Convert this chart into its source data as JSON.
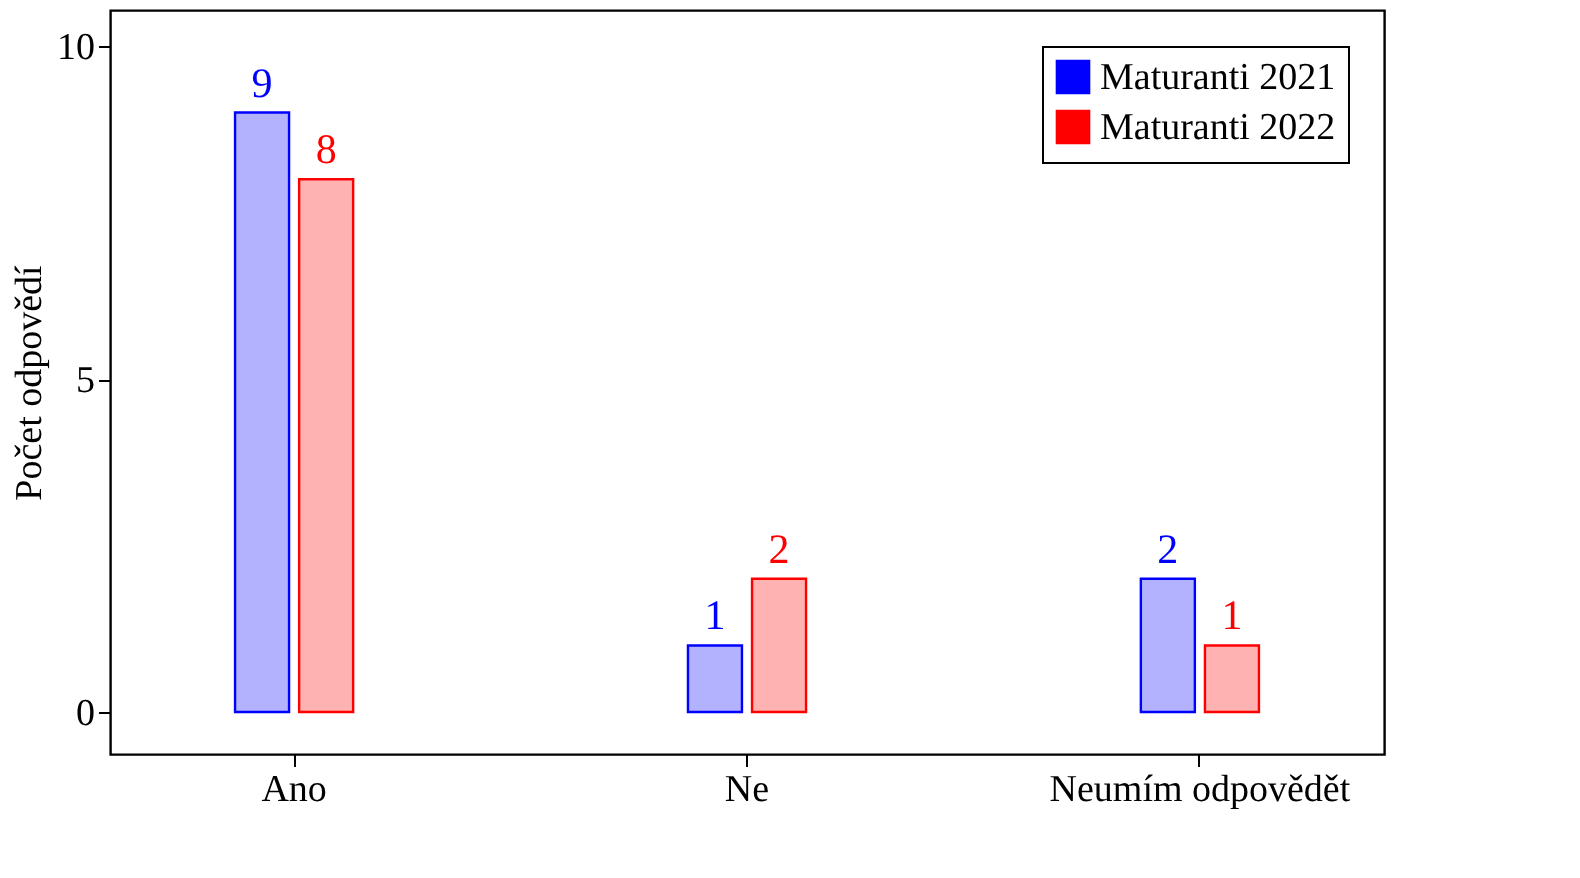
{
  "chart_data": {
    "type": "bar",
    "ylabel": "Počet odpovědí",
    "categories": [
      "Ano",
      "Ne",
      "Neumím odpovědět"
    ],
    "series": [
      {
        "name": "Maturanti 2021",
        "color": "#0000ff",
        "values": [
          9,
          1,
          2
        ]
      },
      {
        "name": "Maturanti 2022",
        "color": "#ff0000",
        "values": [
          8,
          2,
          1
        ]
      }
    ],
    "ylim": [
      -0.63,
      10.54
    ],
    "yticks": [
      0,
      5,
      10
    ],
    "data_labels": true,
    "legend": "top right",
    "grid": false
  }
}
